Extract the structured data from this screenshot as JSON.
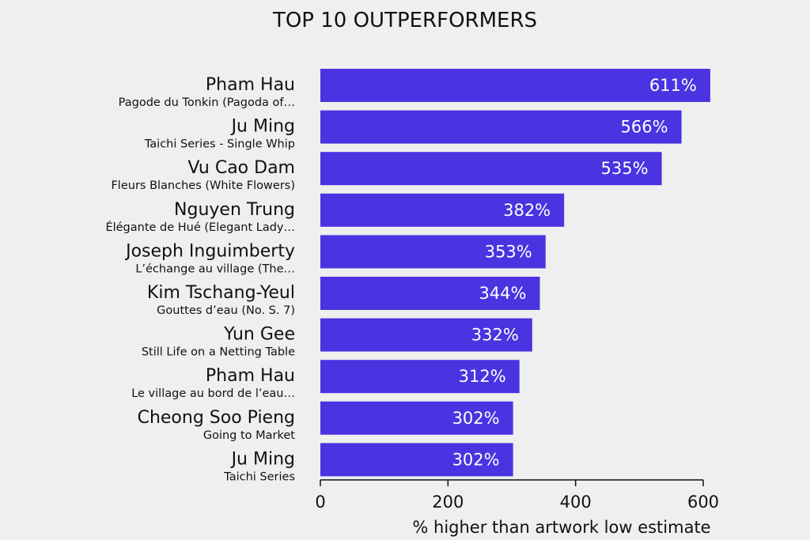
{
  "chart_data": {
    "type": "bar",
    "orientation": "horizontal",
    "title": "TOP 10 OUTPERFORMERS",
    "xlabel": "% higher than artwork low estimate",
    "ylabel": "",
    "xlim": [
      0,
      600
    ],
    "xticks": [
      0,
      200,
      400,
      600
    ],
    "grid": false,
    "bar_color": "#4a33e0",
    "categories": [
      {
        "artist": "Pham Hau",
        "work": "Pagode du Tonkin (Pagoda of…"
      },
      {
        "artist": "Ju Ming",
        "work": "Taichi Series - Single Whip"
      },
      {
        "artist": "Vu Cao Dam",
        "work": "Fleurs Blanches (White Flowers)"
      },
      {
        "artist": "Nguyen Trung",
        "work": "Élégante de Hué (Elegant Lady…"
      },
      {
        "artist": "Joseph Inguimberty",
        "work": "L’échange au village (The…"
      },
      {
        "artist": "Kim Tschang-Yeul",
        "work": "Gouttes d’eau (No. S. 7)"
      },
      {
        "artist": "Yun Gee",
        "work": "Still Life on a Netting Table"
      },
      {
        "artist": "Pham Hau",
        "work": "Le village au bord de l’eau…"
      },
      {
        "artist": "Cheong Soo Pieng",
        "work": "Going to Market"
      },
      {
        "artist": "Ju Ming",
        "work": "Taichi Series"
      }
    ],
    "values": [
      611,
      566,
      535,
      382,
      353,
      344,
      332,
      312,
      302,
      302
    ],
    "value_labels": [
      "611%",
      "566%",
      "535%",
      "382%",
      "353%",
      "344%",
      "332%",
      "312%",
      "302%",
      "302%"
    ]
  }
}
